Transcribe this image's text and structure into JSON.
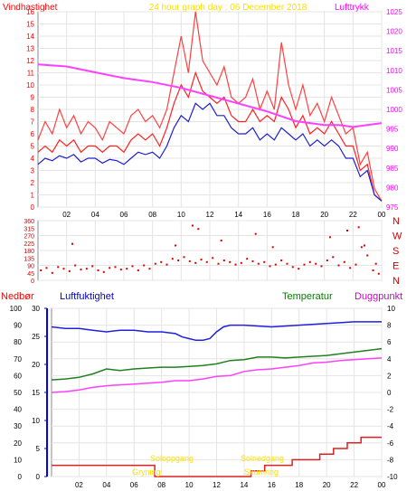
{
  "header": {
    "left_label": "Vindhastighet",
    "title": "24 hour graph day : 06 December 2018",
    "right_label": "Lufttrykk"
  },
  "colors": {
    "wind": "#ff2020",
    "gust": "#ff4040",
    "wind_avg": "#2020cc",
    "pressure": "#ff40ff",
    "direction": "#dd0000",
    "humidity": "#2020dd",
    "temperature": "#208020",
    "dewpoint": "#ff40ff",
    "rain": "#dd2020",
    "sun": "#ffdd00",
    "axis_left": "#ff0000",
    "axis_pressure": "#ff00ff",
    "axis_dir": "#cc0000",
    "axis_rain": "#0000ff",
    "axis_temp": "#000000"
  },
  "time_ticks": [
    "02",
    "04",
    "06",
    "08",
    "10",
    "12",
    "14",
    "16",
    "18",
    "20",
    "22",
    "00"
  ],
  "chart_data": [
    {
      "id": "wind",
      "type": "line",
      "title": "24 hour graph day : 06 December 2018",
      "xlabel": "",
      "ylabel": "Vindhastighet",
      "y2label": "Lufttrykk",
      "xlim": [
        0,
        24
      ],
      "ylim": [
        0,
        16
      ],
      "y_ticks": [
        "0",
        "1",
        "2",
        "3",
        "4",
        "5",
        "6",
        "7",
        "8",
        "9",
        "10",
        "11",
        "12",
        "13",
        "14",
        "15",
        "16"
      ],
      "y2lim": [
        975,
        1025
      ],
      "y2_ticks": [
        "975",
        "980",
        "985",
        "990",
        "995",
        "1000",
        "1005",
        "1010",
        "1015",
        "1020",
        "1025"
      ],
      "grid": true,
      "series": [
        {
          "key": "gust",
          "axis": "left",
          "x": [
            0,
            0.5,
            1,
            1.5,
            2,
            2.5,
            3,
            3.5,
            4,
            4.5,
            5,
            5.5,
            6,
            6.5,
            7,
            7.5,
            8,
            8.5,
            9,
            9.5,
            10,
            10.5,
            11,
            11.5,
            12,
            12.5,
            13,
            13.5,
            14,
            14.5,
            15,
            15.5,
            16,
            16.5,
            17,
            17.5,
            18,
            18.5,
            19,
            19.5,
            20,
            20.5,
            21,
            21.5,
            22,
            22.5,
            23,
            23.5,
            24
          ],
          "values": [
            5.5,
            7,
            6,
            8,
            6.5,
            7.5,
            6,
            7,
            6.5,
            5.5,
            7,
            6.5,
            6,
            7.5,
            8,
            7,
            7.5,
            6.5,
            8,
            11,
            14,
            11,
            16,
            12,
            11,
            10,
            11.5,
            9,
            8.5,
            9,
            10.5,
            8,
            9.5,
            8,
            13.5,
            10,
            8,
            10,
            7.5,
            8.5,
            7,
            9,
            7.5,
            6,
            6.5,
            3.5,
            4.5,
            1.5,
            0.5
          ]
        },
        {
          "key": "wind",
          "axis": "left",
          "x": [
            0,
            0.5,
            1,
            1.5,
            2,
            2.5,
            3,
            3.5,
            4,
            4.5,
            5,
            5.5,
            6,
            6.5,
            7,
            7.5,
            8,
            8.5,
            9,
            9.5,
            10,
            10.5,
            11,
            11.5,
            12,
            12.5,
            13,
            13.5,
            14,
            14.5,
            15,
            15.5,
            16,
            16.5,
            17,
            17.5,
            18,
            18.5,
            19,
            19.5,
            20,
            20.5,
            21,
            21.5,
            22,
            22.5,
            23,
            23.5,
            24
          ],
          "values": [
            4.5,
            5,
            4.5,
            5.5,
            5,
            5.5,
            4.5,
            5,
            5,
            4.5,
            5,
            5,
            4.5,
            5.5,
            6,
            5.5,
            6,
            5,
            6.5,
            8.5,
            10,
            9,
            11,
            9.5,
            9,
            8.5,
            9,
            7.5,
            7,
            7,
            8,
            7,
            7.5,
            7,
            9,
            8,
            6.5,
            7.5,
            6,
            6.5,
            6,
            7,
            6,
            5,
            5,
            3,
            3.5,
            1,
            0.5
          ]
        },
        {
          "key": "wind_avg",
          "axis": "left",
          "x": [
            0,
            0.5,
            1,
            1.5,
            2,
            2.5,
            3,
            3.5,
            4,
            4.5,
            5,
            5.5,
            6,
            6.5,
            7,
            7.5,
            8,
            8.5,
            9,
            9.5,
            10,
            10.5,
            11,
            11.5,
            12,
            12.5,
            13,
            13.5,
            14,
            14.5,
            15,
            15.5,
            16,
            16.5,
            17,
            17.5,
            18,
            18.5,
            19,
            19.5,
            20,
            20.5,
            21,
            21.5,
            22,
            22.5,
            23,
            23.5,
            24
          ],
          "values": [
            3.5,
            4,
            3.8,
            4.2,
            4,
            4.3,
            3.7,
            4,
            4,
            3.6,
            3.9,
            3.8,
            3.5,
            4,
            4.5,
            4.3,
            4.5,
            4,
            5,
            6.5,
            7.5,
            7,
            8.5,
            8,
            8.5,
            7.5,
            7.5,
            6.5,
            6,
            6,
            6.5,
            5.5,
            6,
            5.5,
            6.5,
            6,
            5.5,
            6,
            5,
            5.5,
            5,
            5.5,
            5,
            4,
            4,
            2.5,
            3,
            1,
            0.5
          ]
        },
        {
          "key": "pressure",
          "axis": "right",
          "x": [
            0,
            2,
            4,
            6,
            8,
            10,
            12,
            14,
            16,
            18,
            19,
            20,
            21,
            22,
            23,
            24
          ],
          "values": [
            1011.5,
            1011,
            1009.5,
            1008,
            1007,
            1005.5,
            1003.5,
            1001.5,
            999.5,
            997,
            996.5,
            996,
            996,
            995.5,
            996,
            996.5
          ]
        }
      ]
    },
    {
      "id": "direction",
      "type": "scatter",
      "title": "",
      "xlabel": "",
      "ylabel": "",
      "xlim": [
        0,
        24
      ],
      "ylim": [
        0,
        360
      ],
      "y_ticks": [
        "0",
        "90",
        "180",
        "270",
        "360"
      ],
      "y_mid_ticks": [
        "45",
        "135",
        "225",
        "315"
      ],
      "compass": [
        "N",
        "E",
        "S",
        "W",
        "N"
      ],
      "grid": true,
      "series": [
        {
          "key": "direction",
          "x": [
            0.2,
            0.6,
            1.0,
            1.4,
            1.8,
            2.2,
            2.6,
            3.0,
            3.4,
            3.8,
            4.2,
            4.6,
            5.0,
            5.4,
            5.8,
            6.2,
            6.6,
            7.0,
            7.4,
            7.8,
            8.2,
            8.6,
            9.0,
            9.4,
            9.8,
            10.2,
            10.6,
            11.0,
            11.4,
            11.8,
            12.2,
            12.6,
            13.0,
            13.4,
            13.8,
            14.2,
            14.6,
            15.0,
            15.4,
            15.8,
            16.2,
            16.6,
            17.0,
            17.4,
            17.8,
            18.2,
            18.6,
            19.0,
            19.4,
            19.8,
            20.2,
            20.6,
            21.0,
            21.4,
            21.8,
            22.2,
            22.6,
            23.0,
            23.4,
            23.8,
            2.4,
            9.6,
            10.8,
            11.2,
            12.8,
            15.2,
            16.4,
            20.4,
            21.6,
            22.4,
            22.8,
            23.6
          ],
          "values": [
            60,
            75,
            45,
            80,
            70,
            55,
            90,
            65,
            70,
            85,
            60,
            50,
            75,
            80,
            65,
            70,
            85,
            60,
            90,
            70,
            100,
            110,
            95,
            130,
            120,
            140,
            115,
            105,
            125,
            110,
            135,
            100,
            120,
            110,
            95,
            105,
            130,
            115,
            100,
            110,
            85,
            95,
            120,
            100,
            80,
            70,
            95,
            110,
            100,
            85,
            120,
            140,
            90,
            110,
            75,
            95,
            200,
            150,
            60,
            40,
            220,
            210,
            330,
            310,
            240,
            280,
            200,
            260,
            300,
            320,
            210,
            100
          ]
        }
      ]
    },
    {
      "id": "climate",
      "type": "line",
      "title": "",
      "labels": {
        "rain": "Nedbør",
        "humidity": "Luftfuktighet",
        "temperature": "Temperatur",
        "dewpoint": "Duggpunkt"
      },
      "xlim": [
        0,
        24
      ],
      "humidity_ylim": [
        0,
        100
      ],
      "humidity_ticks": [
        "0",
        "10",
        "20",
        "30",
        "40",
        "50",
        "60",
        "70",
        "80",
        "90",
        "100"
      ],
      "rain_ylim": [
        0,
        30
      ],
      "rain_ticks": [
        "0",
        "5",
        "10",
        "15",
        "20",
        "25",
        "30"
      ],
      "temp_ylim": [
        -10,
        10
      ],
      "temp_ticks": [
        "-10",
        "-8",
        "-6",
        "-4",
        "-2",
        "0",
        "2",
        "4",
        "6",
        "8",
        "10"
      ],
      "grid": true,
      "series": [
        {
          "key": "humidity",
          "axis": "humidity",
          "x": [
            0,
            1,
            2,
            3,
            4,
            5,
            6,
            7,
            8,
            9,
            9.5,
            10,
            10.5,
            11,
            11.5,
            12,
            12.5,
            13,
            14,
            16,
            18,
            20,
            22,
            24
          ],
          "values": [
            89,
            88,
            88,
            87,
            86,
            87,
            87,
            86,
            86,
            85,
            83,
            82,
            81,
            81,
            82,
            86,
            89,
            90,
            90,
            89,
            90,
            91,
            92,
            92
          ]
        },
        {
          "key": "temperature",
          "axis": "temp",
          "x": [
            0,
            1,
            2,
            3,
            4,
            5,
            6,
            7,
            8,
            9,
            10,
            11,
            12,
            13,
            14,
            15,
            16,
            17,
            18,
            19,
            20,
            21,
            22,
            23,
            24
          ],
          "values": [
            1.5,
            1.6,
            1.8,
            2.2,
            2.8,
            2.6,
            2.8,
            2.9,
            3.0,
            3.0,
            3.1,
            3.2,
            3.4,
            3.8,
            3.9,
            4.2,
            4.2,
            4.1,
            4.2,
            4.3,
            4.4,
            4.6,
            4.8,
            5.0,
            5.2
          ]
        },
        {
          "key": "dewpoint",
          "axis": "temp",
          "x": [
            0,
            1,
            2,
            3,
            4,
            5,
            6,
            7,
            8,
            9,
            10,
            11,
            12,
            13,
            14,
            15,
            16,
            17,
            18,
            19,
            20,
            21,
            22,
            23,
            24
          ],
          "values": [
            0.0,
            0.1,
            0.3,
            0.6,
            0.8,
            0.9,
            1.0,
            1.1,
            1.2,
            1.4,
            1.4,
            1.6,
            1.9,
            2.0,
            2.5,
            2.7,
            2.8,
            3.0,
            3.2,
            3.5,
            3.6,
            3.8,
            3.9,
            4.0,
            4.1
          ]
        },
        {
          "key": "rain",
          "axis": "rain",
          "step": true,
          "x": [
            0,
            7,
            7.5,
            14,
            14.5,
            15.5,
            17.5,
            19.5,
            20.5,
            21.5,
            22.5,
            24
          ],
          "values": [
            2,
            2,
            0,
            0,
            1,
            2,
            3,
            4,
            5,
            6,
            7,
            7
          ]
        }
      ],
      "sun_labels": {
        "sunrise": "Soloppgang",
        "sunset": "Solnedgang",
        "dawn": "Gryning",
        "dusk": "Skumring"
      }
    }
  ]
}
